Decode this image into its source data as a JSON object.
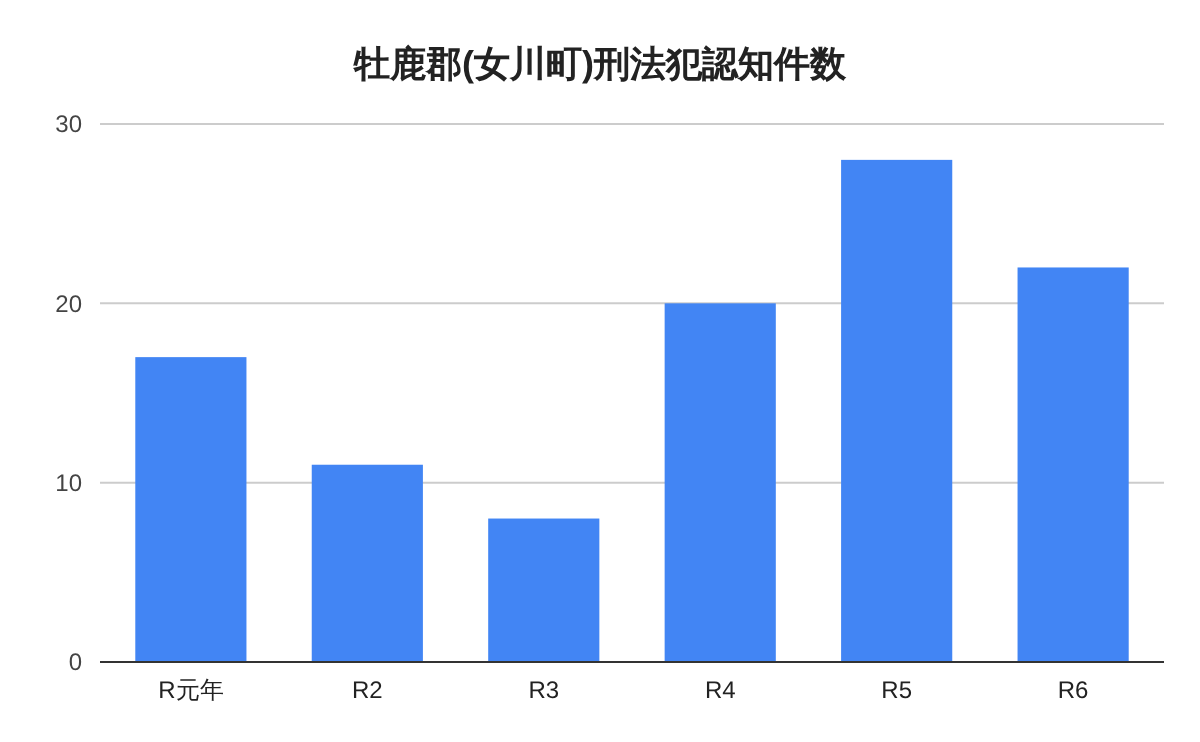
{
  "chart_data": {
    "type": "bar",
    "title": "牡鹿郡(女川町)刑法犯認知件数",
    "categories": [
      "R元年",
      "R2",
      "R3",
      "R4",
      "R5",
      "R6"
    ],
    "values": [
      17,
      11,
      8,
      20,
      28,
      22
    ],
    "color": "#4285f4",
    "ylim": [
      0,
      30
    ],
    "yticks": [
      0,
      10,
      20,
      30
    ],
    "grid": "y"
  }
}
